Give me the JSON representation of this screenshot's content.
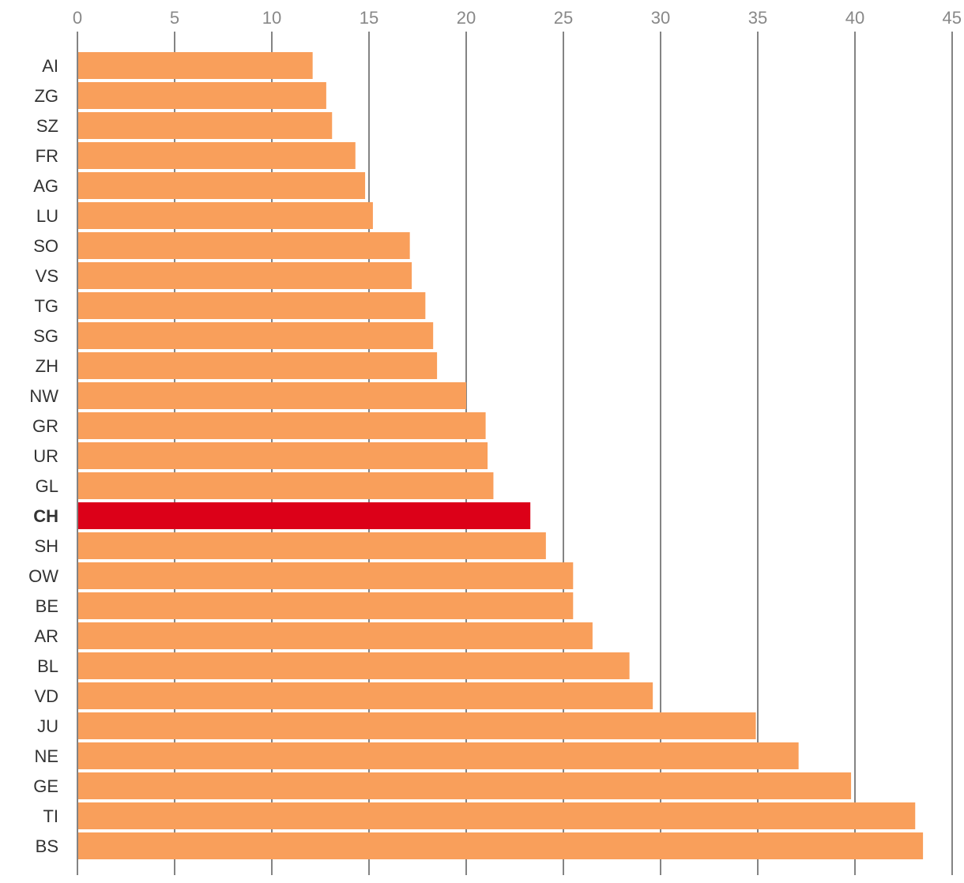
{
  "chart_data": {
    "type": "bar",
    "orientation": "horizontal",
    "title": "",
    "xlabel": "",
    "ylabel": "",
    "xlim": [
      0,
      45
    ],
    "x_ticks": [
      0,
      5,
      10,
      15,
      20,
      25,
      30,
      35,
      40,
      45
    ],
    "grid": true,
    "legend": "none",
    "categories": [
      "AI",
      "ZG",
      "SZ",
      "FR",
      "AG",
      "LU",
      "SO",
      "VS",
      "TG",
      "SG",
      "ZH",
      "NW",
      "GR",
      "UR",
      "GL",
      "CH",
      "SH",
      "OW",
      "BE",
      "AR",
      "BL",
      "VD",
      "JU",
      "NE",
      "GE",
      "TI",
      "BS"
    ],
    "values": [
      12.1,
      12.8,
      13.1,
      14.3,
      14.8,
      15.2,
      17.1,
      17.2,
      17.9,
      18.3,
      18.5,
      20.0,
      21.0,
      21.1,
      21.4,
      23.3,
      24.1,
      25.5,
      25.5,
      26.5,
      28.4,
      29.6,
      34.9,
      37.1,
      39.8,
      43.1,
      43.5
    ],
    "highlight": "CH"
  },
  "colors": {
    "bar": "#F99F5B",
    "highlight": "#DC0018",
    "grid": "#333333",
    "tick_text": "#888888",
    "label_text": "#333333"
  }
}
